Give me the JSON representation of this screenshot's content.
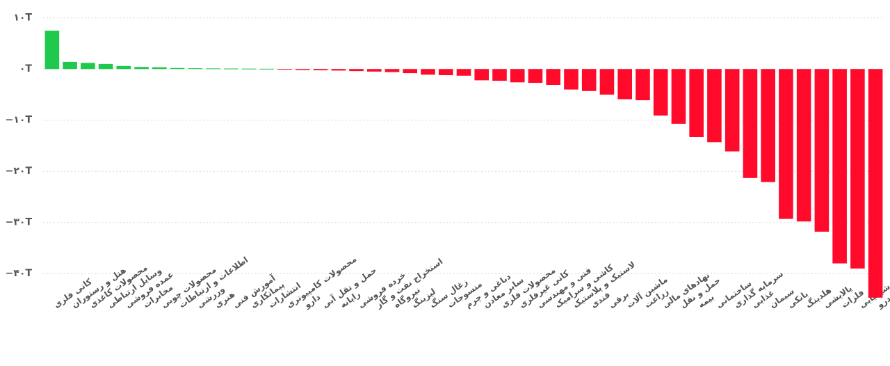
{
  "chart_data": {
    "type": "bar",
    "categories": [
      "کانی فلزی",
      "هتل و رستوران",
      "محصولات کاغذی",
      "وسایل ارتباطی",
      "عمده فروشی",
      "مخابرات",
      "محصولات چوبی",
      "اطلاعات و ارتباطات",
      "ورزشی",
      "هنری",
      "آموزش فنی",
      "پیمانکاری",
      "انتشارات",
      "محصولات کامپیوتری",
      "دارو",
      "حمل و نقل آبی",
      "رایانه",
      "خرده فروشی",
      "استخراج نفت و گاز",
      "نیروگاه",
      "لیزینگ",
      "زغال سنگ",
      "منسوجات",
      "دباغی و چرم",
      "سایر معادن",
      "محصولات فلزی",
      "کانی غیرفلزی",
      "فنی و مهندسی",
      "کاشی و سرامیک",
      "لاستیک و پلاستیک",
      "قندی",
      "برقی",
      "ماشین آلات",
      "زراعت",
      "نهادهای مالی",
      "حمل و نقل",
      "بیمه",
      "ساختمانی",
      "سرمایه گذاری",
      "غذایی",
      "سیمان",
      "بانکی",
      "هلدینگ",
      "پالایشی",
      "فلزات",
      "شیمیایی",
      "خودرو"
    ],
    "values": [
      7.5,
      1.4,
      1.2,
      1.0,
      0.6,
      0.4,
      0.35,
      0.2,
      0.15,
      0.12,
      0.1,
      0.08,
      0.05,
      -0.1,
      -0.2,
      -0.25,
      -0.3,
      -0.4,
      -0.5,
      -0.6,
      -0.8,
      -1.1,
      -1.2,
      -1.3,
      -2.2,
      -2.3,
      -2.6,
      -2.7,
      -3.1,
      -4.0,
      -4.3,
      -5.0,
      -5.9,
      -6.1,
      -9.1,
      -10.7,
      -13.3,
      -14.3,
      -16.1,
      -21.3,
      -22.1,
      -29.3,
      -29.8,
      -31.8,
      -38.0,
      -39.0,
      -44.7
    ],
    "positive_color": "#1ec94c",
    "negative_color": "#ff0a2a",
    "ylim": [
      -45,
      12
    ],
    "yticks": [
      {
        "value": 10,
        "label": "۱۰T"
      },
      {
        "value": 0,
        "label": "۰T"
      },
      {
        "value": -10,
        "label": "−۱۰T"
      },
      {
        "value": -20,
        "label": "−۲۰T"
      },
      {
        "value": -30,
        "label": "−۳۰T"
      },
      {
        "value": -40,
        "label": "−۴۰T"
      }
    ],
    "grid": true
  }
}
